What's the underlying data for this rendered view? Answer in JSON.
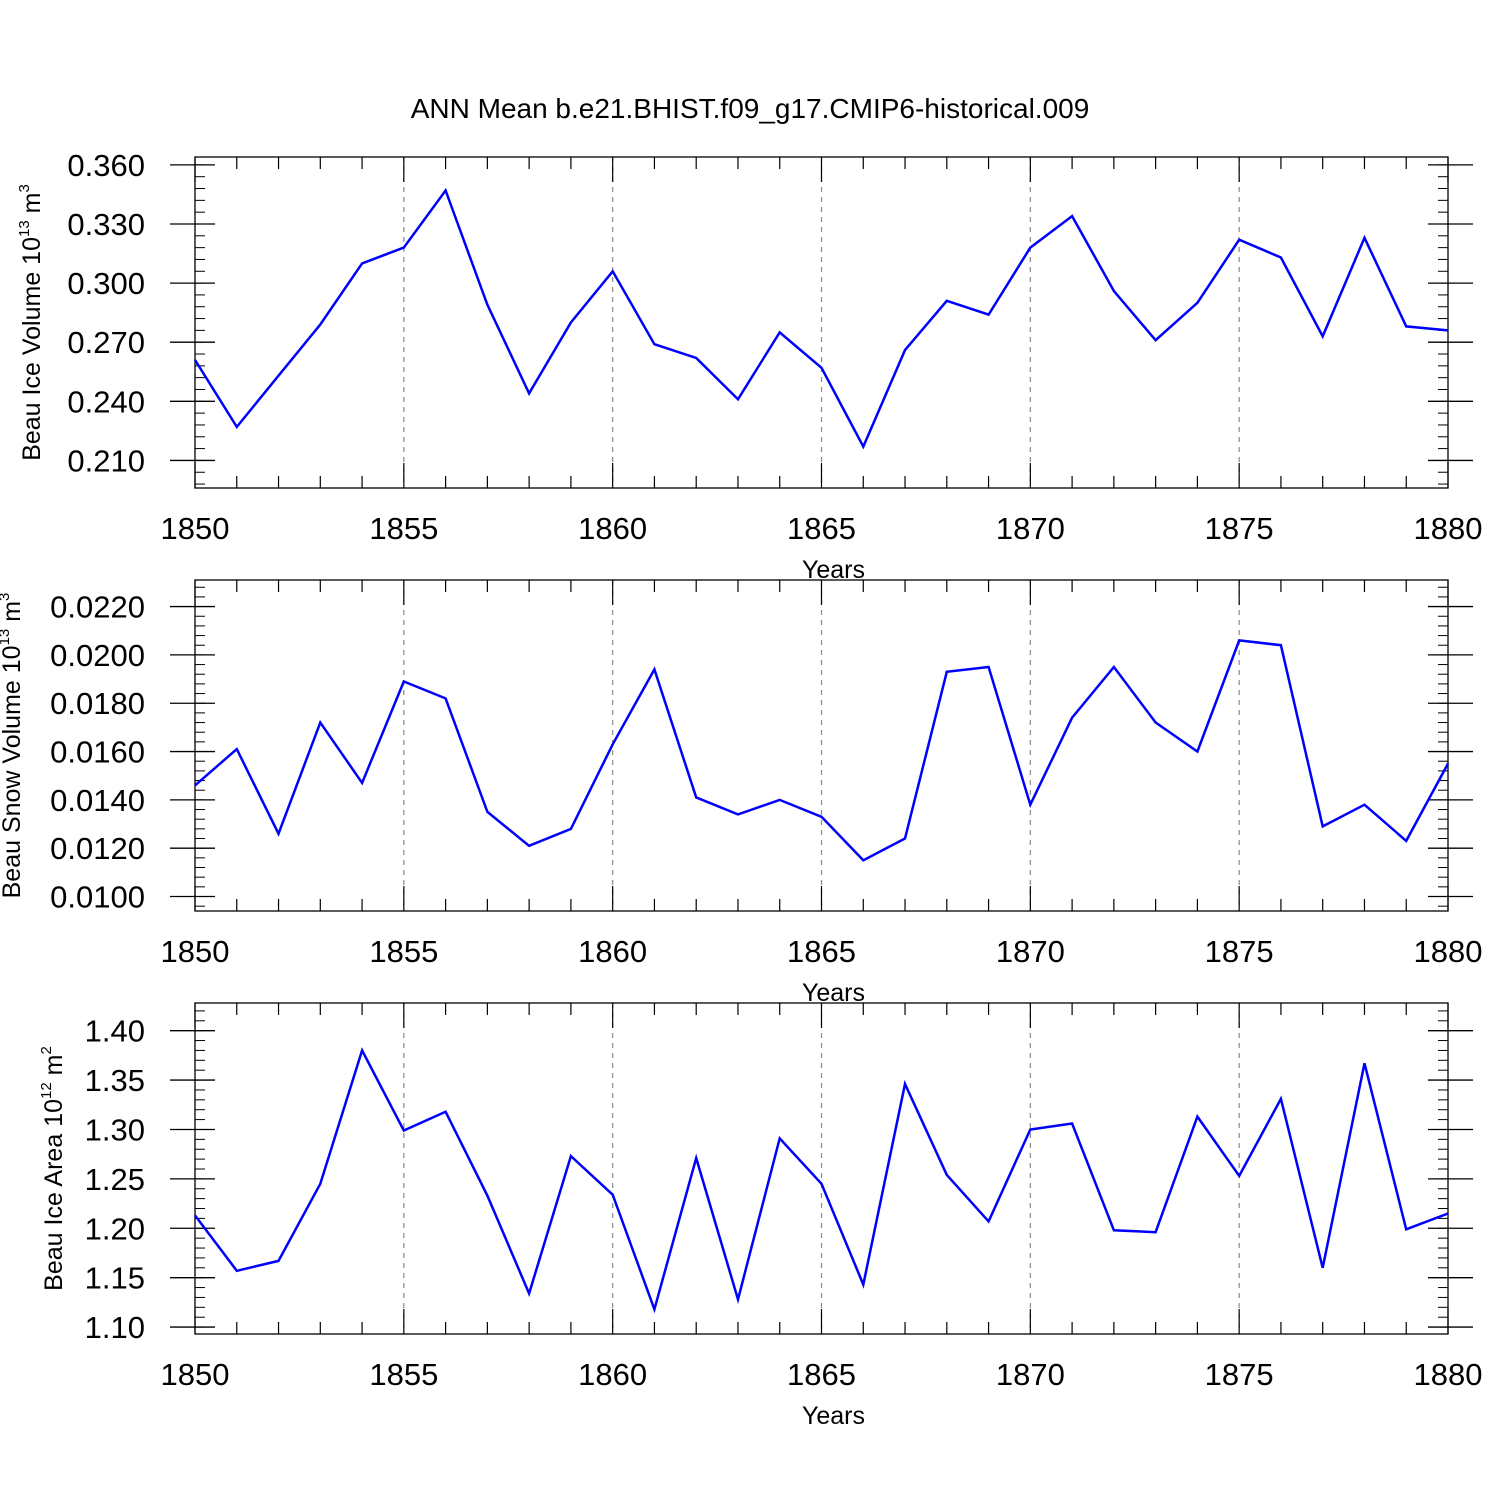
{
  "figure": {
    "title": "ANN Mean b.e21.BHIST.f09_g17.CMIP6-historical.009",
    "line_color": "#0000ff",
    "grid_color": "#888888"
  },
  "chart_data": [
    {
      "type": "line",
      "id": "ice-volume",
      "ylabel": {
        "text": "Beau Ice Volume 10",
        "exp": "13",
        "unit": " m",
        "unit_exp": "3"
      },
      "xlabel": "Years",
      "xlim": [
        1850,
        1880
      ],
      "ylim": [
        0.196,
        0.364
      ],
      "yticks": [
        0.21,
        0.24,
        0.27,
        0.3,
        0.33,
        0.36
      ],
      "ytick_labels": [
        "0.210",
        "0.240",
        "0.270",
        "0.300",
        "0.330",
        "0.360"
      ],
      "xticks": [
        1850,
        1855,
        1860,
        1865,
        1870,
        1875,
        1880
      ],
      "xtick_labels": [
        "1850",
        "1855",
        "1860",
        "1865",
        "1870",
        "1875",
        "1880"
      ],
      "x": [
        1850,
        1851,
        1852,
        1853,
        1854,
        1855,
        1856,
        1857,
        1858,
        1859,
        1860,
        1861,
        1862,
        1863,
        1864,
        1865,
        1866,
        1867,
        1868,
        1869,
        1870,
        1871,
        1872,
        1873,
        1874,
        1875,
        1876,
        1877,
        1878,
        1879,
        1880
      ],
      "series": [
        {
          "name": "Beau Ice Volume",
          "values": [
            0.261,
            0.227,
            0.253,
            0.279,
            0.31,
            0.318,
            0.347,
            0.289,
            0.244,
            0.28,
            0.306,
            0.269,
            0.262,
            0.241,
            0.275,
            0.257,
            0.217,
            0.266,
            0.291,
            0.284,
            0.318,
            0.334,
            0.296,
            0.271,
            0.29,
            0.322,
            0.313,
            0.273,
            0.323,
            0.278,
            0.276
          ]
        }
      ]
    },
    {
      "type": "line",
      "id": "snow-volume",
      "ylabel": {
        "text": "Beau Snow Volume 10",
        "exp": "13",
        "unit": " m",
        "unit_exp": "3"
      },
      "xlabel": "Years",
      "xlim": [
        1850,
        1880
      ],
      "ylim": [
        0.0094,
        0.0231
      ],
      "yticks": [
        0.01,
        0.012,
        0.014,
        0.016,
        0.018,
        0.02,
        0.022
      ],
      "ytick_labels": [
        "0.0100",
        "0.0120",
        "0.0140",
        "0.0160",
        "0.0180",
        "0.0200",
        "0.0220"
      ],
      "xticks": [
        1850,
        1855,
        1860,
        1865,
        1870,
        1875,
        1880
      ],
      "xtick_labels": [
        "1850",
        "1855",
        "1860",
        "1865",
        "1870",
        "1875",
        "1880"
      ],
      "x": [
        1850,
        1851,
        1852,
        1853,
        1854,
        1855,
        1856,
        1857,
        1858,
        1859,
        1860,
        1861,
        1862,
        1863,
        1864,
        1865,
        1866,
        1867,
        1868,
        1869,
        1870,
        1871,
        1872,
        1873,
        1874,
        1875,
        1876,
        1877,
        1878,
        1879,
        1880
      ],
      "series": [
        {
          "name": "Beau Snow Volume",
          "values": [
            0.0146,
            0.0161,
            0.0126,
            0.0172,
            0.0147,
            0.0189,
            0.0182,
            0.0135,
            0.0121,
            0.0128,
            0.0163,
            0.0194,
            0.0141,
            0.0134,
            0.014,
            0.0133,
            0.0115,
            0.0124,
            0.0193,
            0.0195,
            0.0138,
            0.0174,
            0.0195,
            0.0172,
            0.016,
            0.0206,
            0.0204,
            0.0129,
            0.0138,
            0.0123,
            0.0155
          ]
        }
      ]
    },
    {
      "type": "line",
      "id": "ice-area",
      "ylabel": {
        "text": "Beau Ice Area 10",
        "exp": "12",
        "unit": " m",
        "unit_exp": "2"
      },
      "xlabel": "Years",
      "xlim": [
        1850,
        1880
      ],
      "ylim": [
        1.093,
        1.428
      ],
      "yticks": [
        1.1,
        1.15,
        1.2,
        1.25,
        1.3,
        1.35,
        1.4
      ],
      "ytick_labels": [
        "1.10",
        "1.15",
        "1.20",
        "1.25",
        "1.30",
        "1.35",
        "1.40"
      ],
      "xticks": [
        1850,
        1855,
        1860,
        1865,
        1870,
        1875,
        1880
      ],
      "xtick_labels": [
        "1850",
        "1855",
        "1860",
        "1865",
        "1870",
        "1875",
        "1880"
      ],
      "x": [
        1850,
        1851,
        1852,
        1853,
        1854,
        1855,
        1856,
        1857,
        1858,
        1859,
        1860,
        1861,
        1862,
        1863,
        1864,
        1865,
        1866,
        1867,
        1868,
        1869,
        1870,
        1871,
        1872,
        1873,
        1874,
        1875,
        1876,
        1877,
        1878,
        1879,
        1880
      ],
      "series": [
        {
          "name": "Beau Ice Area",
          "values": [
            1.213,
            1.157,
            1.167,
            1.245,
            1.38,
            1.299,
            1.318,
            1.233,
            1.134,
            1.273,
            1.234,
            1.118,
            1.271,
            1.128,
            1.291,
            1.245,
            1.143,
            1.346,
            1.254,
            1.207,
            1.3,
            1.306,
            1.198,
            1.196,
            1.313,
            1.253,
            1.331,
            1.16,
            1.367,
            1.199,
            1.215
          ]
        }
      ]
    }
  ]
}
